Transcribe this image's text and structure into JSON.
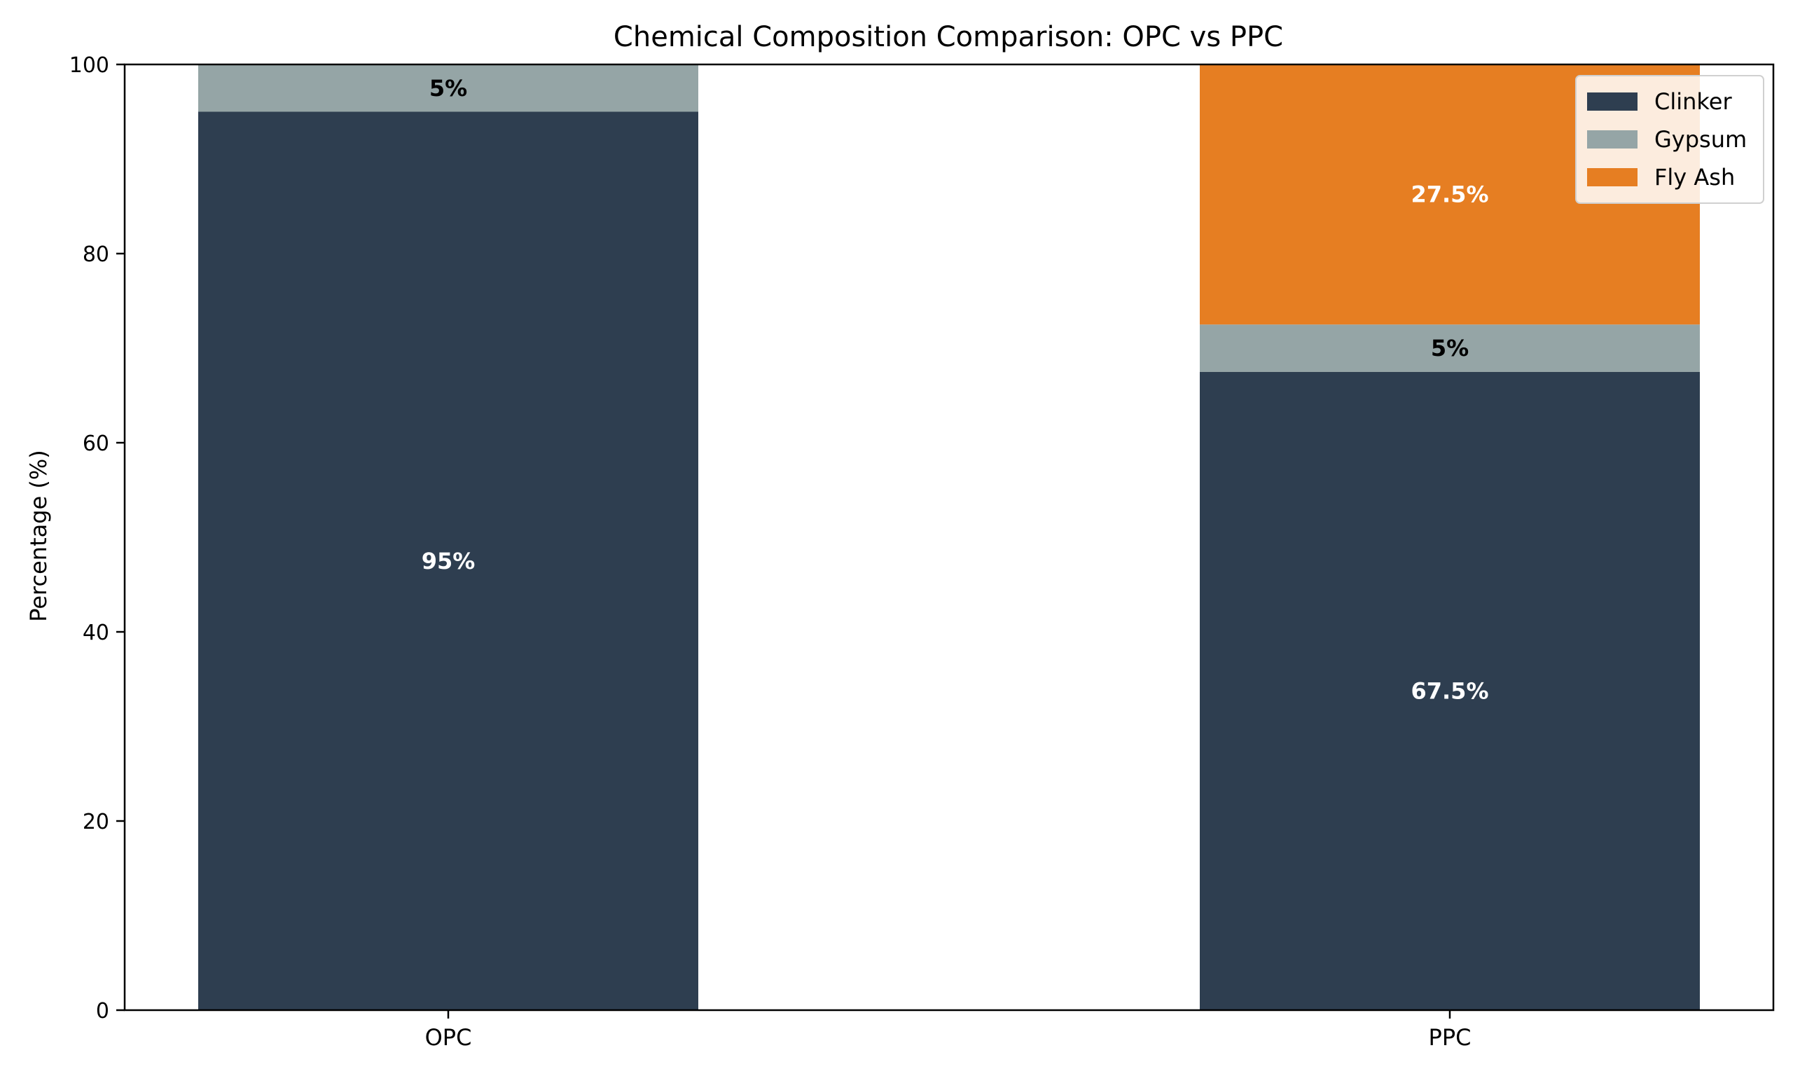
{
  "chart_data": {
    "type": "bar",
    "stacked": true,
    "title": "Chemical Composition Comparison: OPC vs PPC",
    "xlabel": "",
    "ylabel": "Percentage (%)",
    "categories": [
      "OPC",
      "PPC"
    ],
    "ylim": [
      0,
      100
    ],
    "yticks": [
      0,
      20,
      40,
      60,
      80,
      100
    ],
    "grid": false,
    "legend_position": "top-right",
    "series": [
      {
        "name": "Clinker",
        "values": [
          95,
          67.5
        ],
        "color": "#2e3e50",
        "labels": [
          "95%",
          "67.5%"
        ],
        "label_color": "#ffffff"
      },
      {
        "name": "Gypsum",
        "values": [
          5,
          5
        ],
        "color": "#95a5a6",
        "labels": [
          "5%",
          "5%"
        ],
        "label_color": "#000000"
      },
      {
        "name": "Fly Ash",
        "values": [
          0,
          27.5
        ],
        "color": "#e67e22",
        "labels": [
          "",
          "27.5%"
        ],
        "label_color": "#ffffff"
      }
    ]
  }
}
